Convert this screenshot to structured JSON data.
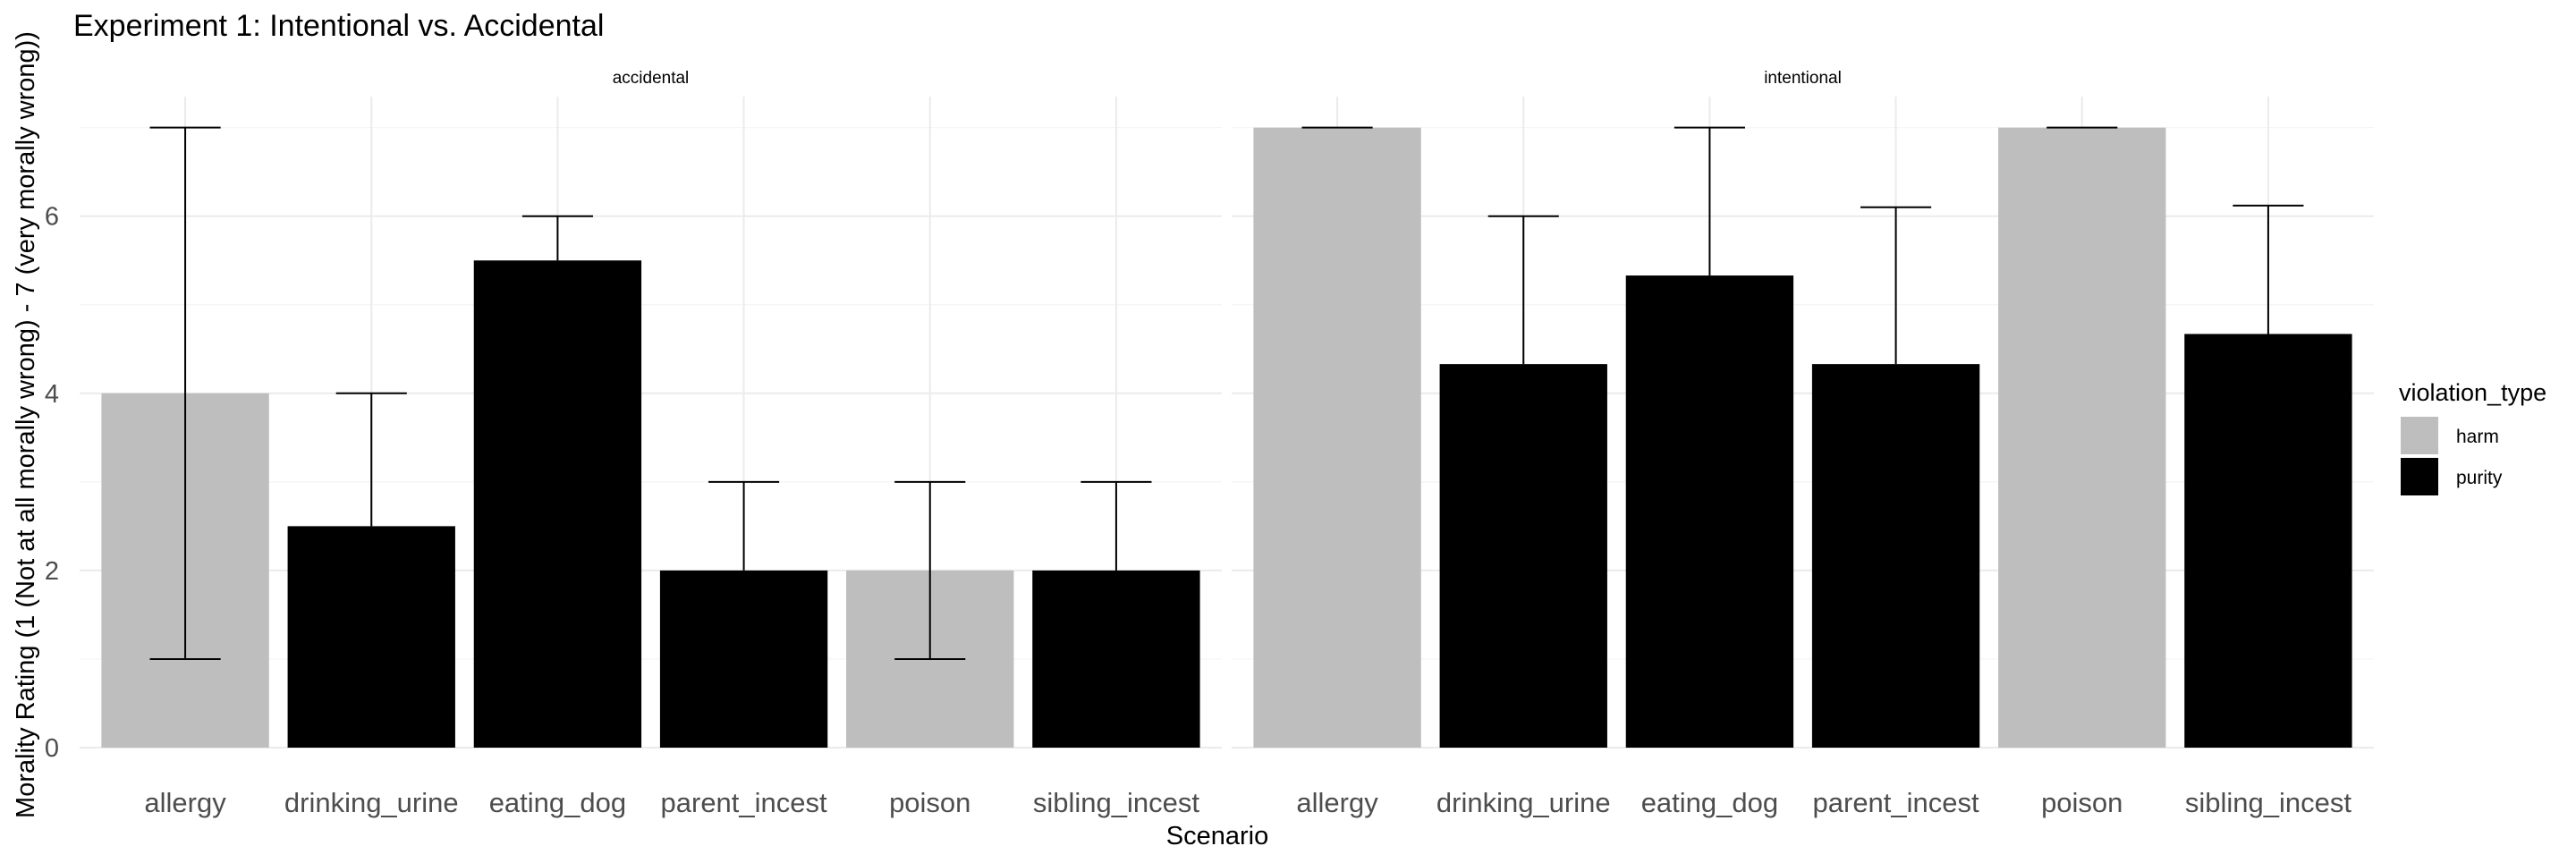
{
  "chart_data": {
    "type": "bar",
    "title": "Experiment 1: Intentional vs. Accidental",
    "xlabel": "Scenario",
    "ylabel": "Morality Rating (1 (Not at all morally wrong) - 7 (very morally wrong))",
    "ylim": [
      0,
      7.35
    ],
    "y_ticks": [
      0,
      2,
      4,
      6
    ],
    "grid": true,
    "legend": {
      "title": "violation_type",
      "position": "right",
      "entries": [
        "harm",
        "purity"
      ]
    },
    "colors": {
      "harm": "#bebebe",
      "purity": "#000000"
    },
    "categories": [
      "allergy",
      "drinking_urine",
      "eating_dog",
      "parent_incest",
      "poison",
      "sibling_incest"
    ],
    "violation_types": [
      "harm",
      "purity",
      "purity",
      "purity",
      "harm",
      "purity"
    ],
    "facets": [
      {
        "label": "accidental",
        "values": [
          4.0,
          2.5,
          5.5,
          2.0,
          2.0,
          2.0
        ],
        "error_low": [
          1.0,
          null,
          null,
          null,
          1.0,
          null
        ],
        "error_high": [
          7.0,
          4.0,
          6.0,
          3.0,
          3.0,
          3.0
        ]
      },
      {
        "label": "intentional",
        "values": [
          7.0,
          4.33,
          5.33,
          4.33,
          7.0,
          4.67
        ],
        "error_low": [
          null,
          null,
          null,
          null,
          null,
          null
        ],
        "error_high": [
          7.0,
          6.0,
          7.0,
          6.1,
          7.0,
          6.12
        ]
      }
    ]
  }
}
